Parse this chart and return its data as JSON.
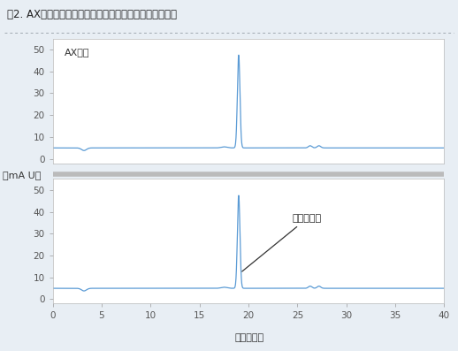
{
  "title": "噣2. AX画分における結合型フェノール類の渶出パターン",
  "xlabel": "時間（分）",
  "ylabel": "（mA U）",
  "top_label": "AX回分",
  "bottom_annotation": "フェルラ酸",
  "xlim": [
    0,
    40
  ],
  "ylim": [
    -2,
    55
  ],
  "yticks": [
    0,
    10,
    20,
    30,
    40,
    50
  ],
  "xticks": [
    0,
    5,
    10,
    15,
    20,
    25,
    30,
    35,
    40
  ],
  "line_color": "#5b9bd5",
  "baseline": 5.0,
  "peak_x": 19.0,
  "peak_y": 47.5,
  "peak_sigma": 0.13,
  "bump1_x": 3.2,
  "bump1_dip": -1.2,
  "bump1_sigma": 0.25,
  "bump2_x": 26.3,
  "bump2_height": 1.0,
  "bump2_sigma": 0.18,
  "bump3_x": 27.2,
  "bump3_height": 1.0,
  "bump3_sigma": 0.18,
  "small_pre_peak_x": 17.5,
  "small_pre_peak_height": 0.5,
  "small_pre_peak_sigma": 0.3,
  "bg_color": "#e8eef4",
  "plot_bg": "#ffffff",
  "border_color": "#c0c8d0",
  "tick_color": "#555555",
  "title_fontsize": 8.5,
  "tick_fontsize": 7.5,
  "label_fontsize": 8,
  "sublabel_fontsize": 8,
  "annotation_fontsize": 8
}
